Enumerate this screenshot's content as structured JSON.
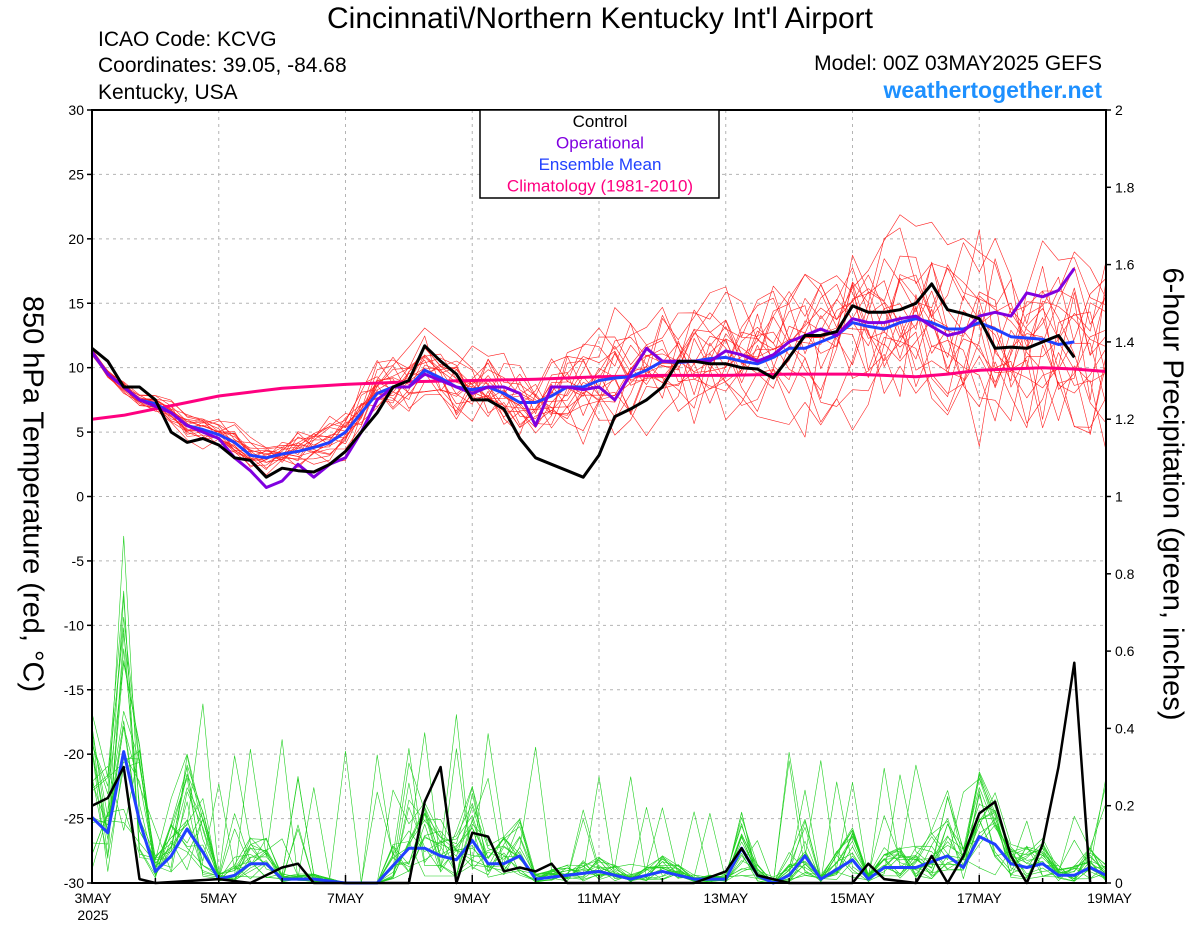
{
  "header": {
    "title": "Cincinnati\\/Northern Kentucky Int'l Airport",
    "icao": "ICAO Code: KCVG",
    "coords": "Coordinates: 39.05, -84.68",
    "region": "Kentucky, USA",
    "model": "Model: 00Z 03MAY2025 GEFS",
    "site": "weathertogether.net"
  },
  "colors": {
    "control": "#000000",
    "operational": "#8000e0",
    "mean": "#2040ff",
    "climatology": "#ff0080",
    "member_temp": "#ff2020",
    "member_precip": "#20d020",
    "site": "#1e90ff"
  },
  "chart_data": {
    "type": "line",
    "xlabel": "",
    "ylabel_left": "850 hPa Temperature (red, °C)",
    "ylabel_right": "6-hour Precipitation (green, inches)",
    "x_ticks": [
      "3MAY",
      "5MAY",
      "7MAY",
      "9MAY",
      "11MAY",
      "13MAY",
      "15MAY",
      "17MAY",
      "19MAY"
    ],
    "x_year": "2025",
    "x_range_days": [
      0,
      16
    ],
    "ylim_left": [
      -30,
      30
    ],
    "yticks_left": [
      30,
      25,
      20,
      15,
      10,
      5,
      0,
      -5,
      -10,
      -15,
      -20,
      -25,
      -30
    ],
    "ylim_right": [
      0,
      2
    ],
    "yticks_right": [
      "2",
      "1.8",
      "1.6",
      "1.4",
      "1.2",
      "1",
      "0.8",
      "0.6",
      "0.4",
      "0.2",
      "0"
    ],
    "legend": {
      "placement": "top-center",
      "entries": [
        "Control",
        "Operational",
        "Ensemble Mean",
        "Climatology (1981-2010)"
      ]
    },
    "grid": true,
    "temperature": {
      "control": [
        [
          0,
          11.5
        ],
        [
          0.25,
          10.5
        ],
        [
          0.5,
          8.5
        ],
        [
          0.75,
          8.5
        ],
        [
          1,
          7.5
        ],
        [
          1.25,
          5
        ],
        [
          1.5,
          4.2
        ],
        [
          1.75,
          4.5
        ],
        [
          2,
          4
        ],
        [
          2.25,
          3
        ],
        [
          2.5,
          2.8
        ],
        [
          2.75,
          1.5
        ],
        [
          3,
          2.2
        ],
        [
          3.25,
          2
        ],
        [
          3.5,
          1.9
        ],
        [
          3.75,
          2.5
        ],
        [
          4,
          3.5
        ],
        [
          4.25,
          5
        ],
        [
          4.5,
          6.5
        ],
        [
          4.75,
          8.5
        ],
        [
          5,
          9
        ],
        [
          5.25,
          11.7
        ],
        [
          5.5,
          10.5
        ],
        [
          5.75,
          9.5
        ],
        [
          6,
          7.5
        ],
        [
          6.25,
          7.5
        ],
        [
          6.5,
          6.8
        ],
        [
          6.75,
          4.5
        ],
        [
          7,
          3
        ],
        [
          7.25,
          2.5
        ],
        [
          7.5,
          2
        ],
        [
          7.75,
          1.5
        ],
        [
          8,
          3.2
        ],
        [
          8.25,
          6.2
        ],
        [
          8.5,
          6.8
        ],
        [
          8.75,
          7.5
        ],
        [
          9,
          8.5
        ],
        [
          9.25,
          10.5
        ],
        [
          9.5,
          10.5
        ],
        [
          9.75,
          10.3
        ],
        [
          10,
          10.3
        ],
        [
          10.25,
          10
        ],
        [
          10.5,
          9.9
        ],
        [
          10.75,
          9.2
        ],
        [
          11,
          10.8
        ],
        [
          11.25,
          12.5
        ],
        [
          11.5,
          12.5
        ],
        [
          11.75,
          12.8
        ],
        [
          12,
          14.8
        ],
        [
          12.25,
          14.3
        ],
        [
          12.5,
          14.3
        ],
        [
          12.75,
          14.5
        ],
        [
          13,
          15
        ],
        [
          13.25,
          16.5
        ],
        [
          13.5,
          14.5
        ],
        [
          13.75,
          14.2
        ],
        [
          14,
          13.8
        ],
        [
          14.25,
          11.5
        ],
        [
          14.5,
          11.6
        ],
        [
          14.75,
          11.5
        ],
        [
          15,
          12
        ],
        [
          15.25,
          12.5
        ],
        [
          15.5,
          10.8
        ]
      ],
      "operational": [
        [
          0,
          11.2
        ],
        [
          0.25,
          9.5
        ],
        [
          0.5,
          8.5
        ],
        [
          0.75,
          7.5
        ],
        [
          1,
          7
        ],
        [
          1.25,
          6.5
        ],
        [
          1.5,
          5.5
        ],
        [
          1.75,
          5
        ],
        [
          2,
          4.5
        ],
        [
          2.25,
          3
        ],
        [
          2.5,
          2
        ],
        [
          2.75,
          0.7
        ],
        [
          3,
          1.2
        ],
        [
          3.25,
          2.5
        ],
        [
          3.5,
          1.5
        ],
        [
          3.75,
          2.5
        ],
        [
          4,
          3
        ],
        [
          4.25,
          5
        ],
        [
          4.5,
          7.5
        ],
        [
          4.75,
          8.5
        ],
        [
          5,
          8.5
        ],
        [
          5.25,
          9.5
        ],
        [
          5.5,
          9
        ],
        [
          5.75,
          8.5
        ],
        [
          6,
          8
        ],
        [
          6.25,
          8.5
        ],
        [
          6.5,
          8.5
        ],
        [
          6.75,
          8
        ],
        [
          7,
          5.5
        ],
        [
          7.25,
          8.5
        ],
        [
          7.5,
          8.5
        ],
        [
          7.75,
          8.3
        ],
        [
          8,
          8.5
        ],
        [
          8.25,
          7.5
        ],
        [
          8.5,
          9.5
        ],
        [
          8.75,
          11.5
        ],
        [
          9,
          10.5
        ],
        [
          9.25,
          10.5
        ],
        [
          9.5,
          10.5
        ],
        [
          9.75,
          10.5
        ],
        [
          10,
          11.3
        ],
        [
          10.25,
          11
        ],
        [
          10.5,
          10.5
        ],
        [
          10.75,
          11
        ],
        [
          11,
          12
        ],
        [
          11.25,
          12.5
        ],
        [
          11.5,
          13
        ],
        [
          11.75,
          12.5
        ],
        [
          12,
          13.8
        ],
        [
          12.25,
          13.5
        ],
        [
          12.5,
          13.5
        ],
        [
          12.75,
          13.8
        ],
        [
          13,
          14
        ],
        [
          13.25,
          13.2
        ],
        [
          13.5,
          12.5
        ],
        [
          13.75,
          12.8
        ],
        [
          14,
          14
        ],
        [
          14.25,
          14.3
        ],
        [
          14.5,
          14
        ],
        [
          14.75,
          15.8
        ],
        [
          15,
          15.5
        ],
        [
          15.25,
          16
        ],
        [
          15.5,
          17.7
        ]
      ],
      "mean": [
        [
          0,
          11.2
        ],
        [
          0.25,
          9.5
        ],
        [
          0.5,
          8.5
        ],
        [
          0.75,
          7.5
        ],
        [
          1,
          7.2
        ],
        [
          1.25,
          6.5
        ],
        [
          1.5,
          5.5
        ],
        [
          1.75,
          5.2
        ],
        [
          2,
          4.8
        ],
        [
          2.25,
          4.2
        ],
        [
          2.5,
          3.2
        ],
        [
          2.75,
          3
        ],
        [
          3,
          3.3
        ],
        [
          3.25,
          3.5
        ],
        [
          3.5,
          3.8
        ],
        [
          3.75,
          4.2
        ],
        [
          4,
          5
        ],
        [
          4.25,
          6.5
        ],
        [
          4.5,
          8
        ],
        [
          4.75,
          8.5
        ],
        [
          5,
          8.5
        ],
        [
          5.25,
          9.8
        ],
        [
          5.5,
          9.2
        ],
        [
          5.75,
          8.5
        ],
        [
          6,
          8.3
        ],
        [
          6.25,
          8.5
        ],
        [
          6.5,
          8
        ],
        [
          6.75,
          7.3
        ],
        [
          7,
          7.3
        ],
        [
          7.25,
          7.8
        ],
        [
          7.5,
          8.5
        ],
        [
          7.75,
          8.5
        ],
        [
          8,
          9
        ],
        [
          8.25,
          9.2
        ],
        [
          8.5,
          9.3
        ],
        [
          8.75,
          9.8
        ],
        [
          9,
          10.5
        ],
        [
          9.25,
          10.4
        ],
        [
          9.5,
          10.5
        ],
        [
          9.75,
          10.7
        ],
        [
          10,
          10.8
        ],
        [
          10.25,
          10.5
        ],
        [
          10.5,
          10.3
        ],
        [
          10.75,
          10.8
        ],
        [
          11,
          11.5
        ],
        [
          11.25,
          11.5
        ],
        [
          11.5,
          12
        ],
        [
          11.75,
          12.5
        ],
        [
          12,
          13.5
        ],
        [
          12.25,
          13.2
        ],
        [
          12.5,
          13
        ],
        [
          12.75,
          13.5
        ],
        [
          13,
          13.8
        ],
        [
          13.25,
          13.5
        ],
        [
          13.5,
          13
        ],
        [
          13.75,
          13
        ],
        [
          14,
          13.5
        ],
        [
          14.25,
          13
        ],
        [
          14.5,
          12.4
        ],
        [
          14.75,
          12.3
        ],
        [
          15,
          12.2
        ],
        [
          15.25,
          11.8
        ],
        [
          15.5,
          12
        ]
      ],
      "climatology": [
        [
          0,
          6
        ],
        [
          0.5,
          6.3
        ],
        [
          1,
          6.8
        ],
        [
          1.5,
          7.3
        ],
        [
          2,
          7.8
        ],
        [
          2.5,
          8.1
        ],
        [
          3,
          8.4
        ],
        [
          4,
          8.7
        ],
        [
          5,
          8.9
        ],
        [
          6,
          9
        ],
        [
          7,
          9.1
        ],
        [
          8,
          9.3
        ],
        [
          9,
          9.4
        ],
        [
          10,
          9.4
        ],
        [
          11,
          9.5
        ],
        [
          12,
          9.5
        ],
        [
          12.5,
          9.4
        ],
        [
          13,
          9.3
        ],
        [
          13.5,
          9.5
        ],
        [
          14,
          9.8
        ],
        [
          15,
          10
        ],
        [
          15.5,
          9.9
        ],
        [
          16,
          9.7
        ]
      ]
    },
    "precipitation": {
      "control": [
        [
          0,
          0.2
        ],
        [
          0.25,
          0.22
        ],
        [
          0.5,
          0.3
        ],
        [
          0.75,
          0.01
        ],
        [
          1,
          0
        ],
        [
          2,
          0.01
        ],
        [
          2.5,
          0
        ],
        [
          3,
          0.04
        ],
        [
          3.25,
          0.05
        ],
        [
          3.5,
          0
        ],
        [
          4,
          0
        ],
        [
          4.5,
          0
        ],
        [
          5,
          0
        ],
        [
          5.25,
          0.21
        ],
        [
          5.5,
          0.3
        ],
        [
          5.75,
          0
        ],
        [
          6,
          0.13
        ],
        [
          6.25,
          0.12
        ],
        [
          6.5,
          0.03
        ],
        [
          6.75,
          0.04
        ],
        [
          7,
          0.03
        ],
        [
          7.25,
          0.05
        ],
        [
          7.5,
          0
        ],
        [
          8,
          0
        ],
        [
          8.5,
          0
        ],
        [
          9,
          0
        ],
        [
          9.5,
          0
        ],
        [
          10,
          0.03
        ],
        [
          10.25,
          0.09
        ],
        [
          10.5,
          0.02
        ],
        [
          11,
          0
        ],
        [
          12,
          0
        ],
        [
          12.25,
          0.05
        ],
        [
          12.5,
          0.01
        ],
        [
          13,
          0
        ],
        [
          13.25,
          0.07
        ],
        [
          13.5,
          0
        ],
        [
          13.75,
          0.07
        ],
        [
          14,
          0.18
        ],
        [
          14.25,
          0.21
        ],
        [
          14.5,
          0.07
        ],
        [
          14.75,
          0
        ],
        [
          15,
          0.1
        ],
        [
          15.25,
          0.3
        ],
        [
          15.5,
          0.57
        ],
        [
          15.75,
          0
        ]
      ],
      "mean": [
        [
          0,
          0.17
        ],
        [
          0.25,
          0.13
        ],
        [
          0.5,
          0.34
        ],
        [
          0.75,
          0.16
        ],
        [
          1,
          0.03
        ],
        [
          1.25,
          0.07
        ],
        [
          1.5,
          0.14
        ],
        [
          1.75,
          0.08
        ],
        [
          2,
          0.01
        ],
        [
          2.25,
          0.02
        ],
        [
          2.5,
          0.05
        ],
        [
          2.75,
          0.05
        ],
        [
          3,
          0.01
        ],
        [
          3.5,
          0.01
        ],
        [
          4,
          0
        ],
        [
          4.5,
          0
        ],
        [
          5,
          0.09
        ],
        [
          5.25,
          0.09
        ],
        [
          5.5,
          0.07
        ],
        [
          5.75,
          0.06
        ],
        [
          6,
          0.11
        ],
        [
          6.25,
          0.05
        ],
        [
          6.5,
          0.05
        ],
        [
          6.75,
          0.07
        ],
        [
          7,
          0.01
        ],
        [
          7.5,
          0.02
        ],
        [
          8,
          0.03
        ],
        [
          8.5,
          0.01
        ],
        [
          9,
          0.03
        ],
        [
          9.5,
          0.01
        ],
        [
          10,
          0.01
        ],
        [
          10.25,
          0.09
        ],
        [
          10.5,
          0.02
        ],
        [
          10.75,
          0
        ],
        [
          11,
          0.02
        ],
        [
          11.25,
          0.07
        ],
        [
          11.5,
          0.01
        ],
        [
          12,
          0.06
        ],
        [
          12.25,
          0.01
        ],
        [
          12.5,
          0.04
        ],
        [
          13,
          0.04
        ],
        [
          13.5,
          0.07
        ],
        [
          13.75,
          0.04
        ],
        [
          14,
          0.12
        ],
        [
          14.25,
          0.1
        ],
        [
          14.5,
          0.05
        ],
        [
          14.75,
          0.04
        ],
        [
          15,
          0.05
        ],
        [
          15.25,
          0.02
        ],
        [
          15.5,
          0.02
        ],
        [
          15.75,
          0.04
        ],
        [
          16,
          0.02
        ]
      ]
    }
  }
}
